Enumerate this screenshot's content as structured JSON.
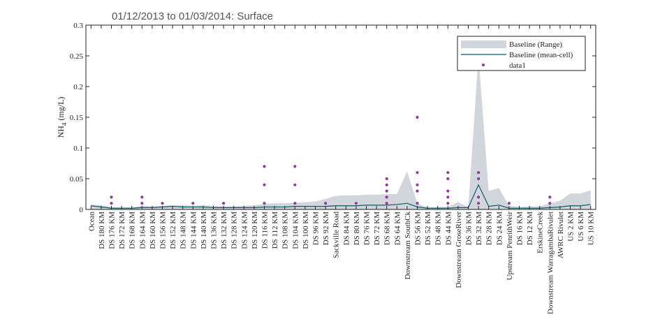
{
  "chart_data": {
    "type": "line",
    "title": "01/12/2013 to 01/03/2014: Surface",
    "ylabel": "NH",
    "ylabel_sub": "4",
    "ylabel_unit": "(mg/L)",
    "ylim": [
      0,
      0.3
    ],
    "yticks": [
      "0",
      "0.05",
      "0.1",
      "0.15",
      "0.2",
      "0.25",
      "0.3"
    ],
    "categories": [
      "Ocean",
      "DS 180 KM",
      "DS 176 KM",
      "DS 172 KM",
      "DS 168 KM",
      "DS 164 KM",
      "DS 160 KM",
      "DS 156 KM",
      "DS 152 KM",
      "DS 148 KM",
      "DS 144 KM",
      "DS 140 KM",
      "DS 136 KM",
      "DS 132 KM",
      "DS 128 KM",
      "DS 124 KM",
      "DS 120 KM",
      "DS 116 KM",
      "DS 112 KM",
      "DS 108 KM",
      "DS 104 KM",
      "DS 100 KM",
      "DS 96 KM",
      "DS 92 KM",
      "Sackville Road",
      "DS 84 KM",
      "DS 80 KM",
      "DS 76 KM",
      "DS 72 KM",
      "DS 68 KM",
      "DS 64 KM",
      "Downstream SouthCk",
      "DS 56 KM",
      "DS 52 KM",
      "DS 48 KM",
      "DS 44 KM",
      "Downstream GroseRiver",
      "DS 36 KM",
      "DS 32 KM",
      "DS 28 KM",
      "DS 24 KM",
      "Upstream PenrithWeir",
      "DS 16 KM",
      "DS 12 KM",
      "ErskineCreek",
      "Downstream WarragambaRivulet",
      "AWRC Rivulet",
      "US 2 KM",
      "US 6 KM",
      "US 10 KM"
    ],
    "legend": {
      "position": "top-right",
      "items": [
        {
          "label": "Baseline (Range)",
          "kind": "area",
          "color": "#d0d6dc"
        },
        {
          "label": "Baseline (mean-cell)",
          "kind": "line",
          "color": "#0f5a63"
        },
        {
          "label": "data1",
          "kind": "marker",
          "color": "#8b3e96"
        }
      ]
    },
    "series": [
      {
        "name": "Baseline (Range)",
        "type": "area",
        "lower": [
          0,
          0,
          0,
          0,
          0,
          0,
          0,
          0,
          0,
          0,
          0,
          0,
          0,
          0,
          0,
          0,
          0,
          0,
          0,
          0,
          0,
          0,
          0,
          0,
          0,
          0,
          0,
          0,
          0,
          0,
          0,
          0,
          0,
          0,
          0,
          0,
          0,
          0,
          0,
          0,
          0,
          0,
          0,
          0,
          0,
          0,
          0,
          0,
          0,
          0
        ],
        "upper": [
          0.008,
          0.007,
          0.004,
          0.003,
          0.003,
          0.006,
          0.005,
          0.006,
          0.007,
          0.007,
          0.006,
          0.007,
          0.006,
          0.005,
          0.005,
          0.006,
          0.007,
          0.009,
          0.01,
          0.01,
          0.011,
          0.012,
          0.013,
          0.017,
          0.022,
          0.023,
          0.023,
          0.024,
          0.024,
          0.025,
          0.025,
          0.062,
          0.01,
          0.003,
          0.004,
          0.004,
          0.012,
          0.004,
          0.25,
          0.03,
          0.035,
          0.006,
          0.004,
          0.005,
          0.005,
          0.01,
          0.014,
          0.026,
          0.026,
          0.031
        ]
      },
      {
        "name": "Baseline (mean-cell)",
        "type": "line",
        "values": [
          0.006,
          0.004,
          0.002,
          0.002,
          0.002,
          0.003,
          0.003,
          0.004,
          0.005,
          0.004,
          0.004,
          0.004,
          0.003,
          0.003,
          0.003,
          0.003,
          0.003,
          0.004,
          0.004,
          0.004,
          0.005,
          0.005,
          0.005,
          0.005,
          0.006,
          0.006,
          0.006,
          0.007,
          0.007,
          0.007,
          0.008,
          0.01,
          0.004,
          0.002,
          0.002,
          0.002,
          0.003,
          0.003,
          0.04,
          0.005,
          0.007,
          0.002,
          0.002,
          0.002,
          0.002,
          0.003,
          0.004,
          0.006,
          0.006,
          0.008
        ]
      },
      {
        "name": "data1",
        "type": "scatter",
        "points": [
          {
            "x": 2,
            "y": 0.02
          },
          {
            "x": 2,
            "y": 0.01
          },
          {
            "x": 5,
            "y": 0.02
          },
          {
            "x": 5,
            "y": 0.01
          },
          {
            "x": 7,
            "y": 0.01
          },
          {
            "x": 10,
            "y": 0.01
          },
          {
            "x": 13,
            "y": 0.01
          },
          {
            "x": 17,
            "y": 0.07
          },
          {
            "x": 17,
            "y": 0.04
          },
          {
            "x": 17,
            "y": 0.01
          },
          {
            "x": 20,
            "y": 0.07
          },
          {
            "x": 20,
            "y": 0.04
          },
          {
            "x": 20,
            "y": 0.01
          },
          {
            "x": 23,
            "y": 0.01
          },
          {
            "x": 26,
            "y": 0.01
          },
          {
            "x": 29,
            "y": 0.05
          },
          {
            "x": 29,
            "y": 0.04
          },
          {
            "x": 29,
            "y": 0.03
          },
          {
            "x": 29,
            "y": 0.02
          },
          {
            "x": 29,
            "y": 0.01
          },
          {
            "x": 32,
            "y": 0.15
          },
          {
            "x": 32,
            "y": 0.06
          },
          {
            "x": 32,
            "y": 0.04
          },
          {
            "x": 32,
            "y": 0.03
          },
          {
            "x": 32,
            "y": 0.01
          },
          {
            "x": 35,
            "y": 0.06
          },
          {
            "x": 35,
            "y": 0.05
          },
          {
            "x": 35,
            "y": 0.03
          },
          {
            "x": 35,
            "y": 0.02
          },
          {
            "x": 35,
            "y": 0.01
          },
          {
            "x": 38,
            "y": 0.06
          },
          {
            "x": 38,
            "y": 0.05
          },
          {
            "x": 38,
            "y": 0.02
          },
          {
            "x": 38,
            "y": 0.01
          },
          {
            "x": 41,
            "y": 0.01
          },
          {
            "x": 45,
            "y": 0.02
          },
          {
            "x": 45,
            "y": 0.01
          }
        ]
      }
    ],
    "grid": false
  }
}
